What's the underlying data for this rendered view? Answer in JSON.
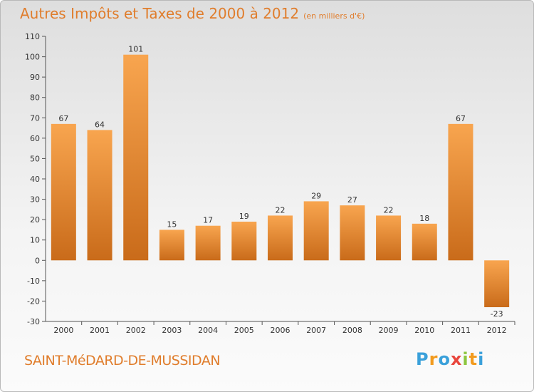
{
  "chart_data": {
    "type": "bar",
    "title": "Autres Impôts et Taxes de 2000 à 2012",
    "subtitle": "(en milliers d'€)",
    "categories": [
      "2000",
      "2001",
      "2002",
      "2003",
      "2004",
      "2005",
      "2006",
      "2007",
      "2008",
      "2009",
      "2010",
      "2011",
      "2012"
    ],
    "values": [
      67,
      64,
      101,
      15,
      17,
      19,
      22,
      29,
      27,
      22,
      18,
      67,
      -23
    ],
    "ylim": [
      -30,
      110
    ],
    "yticks": [
      -30,
      -20,
      -10,
      0,
      10,
      20,
      30,
      40,
      50,
      60,
      70,
      80,
      90,
      100,
      110
    ],
    "grid": false,
    "colors": {
      "bar_light": "#f8a54f",
      "bar_dark": "#c96b1a",
      "accent": "#e07d2c"
    }
  },
  "footer": {
    "commune": "SAINT-MéDARD-DE-MUSSIDAN",
    "logo": {
      "text": "Proxiti",
      "letters": [
        "P",
        "r",
        "o",
        "x",
        "i",
        "t",
        "i"
      ],
      "colors": [
        "#3aa0da",
        "#f29b1f",
        "#3aa0da",
        "#e9463d",
        "#8cc63f",
        "#f29b1f",
        "#3aa0da"
      ]
    }
  }
}
